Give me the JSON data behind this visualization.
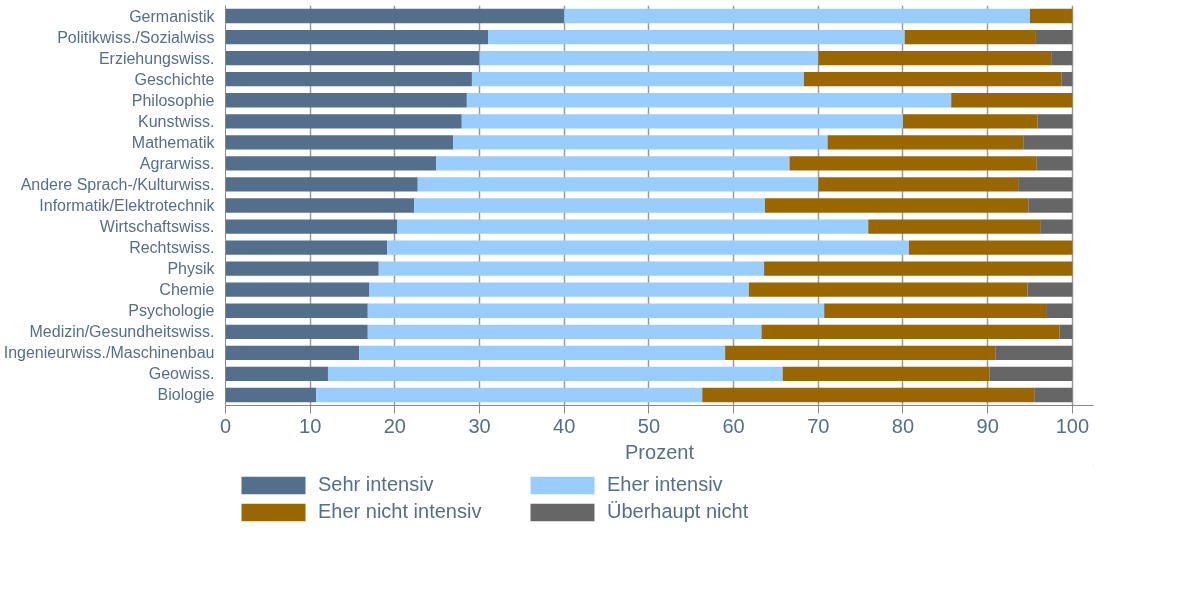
{
  "chart_data": {
    "type": "bar",
    "orientation": "horizontal",
    "stacked": true,
    "xlabel": "Prozent",
    "categories": [
      "Germanistik",
      "Politikwiss./Sozialwiss",
      "Erziehungswiss.",
      "Geschichte",
      "Philosophie",
      "Kunstwiss.",
      "Mathematik",
      "Agrarwiss.",
      "Andere Sprach-/Kulturwiss.",
      "Informatik/Elektrotechnik",
      "Wirtschaftswiss.",
      "Rechtswiss.",
      "Physik",
      "Chemie",
      "Psychologie",
      "Medizin/Gesundheitswiss.",
      "Ingenieurwiss./Maschinenbau",
      "Geowiss.",
      "Biologie"
    ],
    "series": [
      {
        "name": "Sehr intensiv",
        "color": "#536f8c",
        "values": [
          40,
          31,
          30,
          29.1,
          28.5,
          27.9,
          26.9,
          24.9,
          22.7,
          22.3,
          20.3,
          19.1,
          18.1,
          17.0,
          16.8,
          16.8,
          15.8,
          12.1,
          10.7
        ]
      },
      {
        "name": "Eher intensiv",
        "color": "#99ccff",
        "values": [
          55,
          49.2,
          40,
          39.2,
          57.2,
          52.1,
          44.2,
          41.7,
          47.3,
          41.4,
          55.6,
          61.6,
          45.5,
          44.8,
          53.9,
          46.5,
          43.2,
          53.7,
          45.6
        ]
      },
      {
        "name": "Eher nicht intensiv",
        "color": "#996600",
        "values": [
          5,
          15.5,
          27.5,
          30.4,
          14.3,
          15.9,
          23.1,
          29.2,
          23.6,
          31.1,
          20.3,
          19.3,
          36.4,
          32.9,
          26.2,
          35.2,
          31.9,
          24.4,
          39.2
        ]
      },
      {
        "name": "Überhaupt nicht",
        "color": "#666666",
        "values": [
          0,
          4.3,
          2.5,
          1.3,
          0,
          4.1,
          5.8,
          4.2,
          6.4,
          5.2,
          3.8,
          0,
          0,
          5.3,
          3.1,
          1.5,
          9.1,
          9.8,
          4.5
        ]
      }
    ],
    "xlim": [
      0,
      102.5
    ],
    "xticks": [
      0,
      10,
      20,
      30,
      40,
      50,
      60,
      70,
      80,
      90,
      100
    ],
    "grid": "x",
    "legend": "bottom"
  }
}
